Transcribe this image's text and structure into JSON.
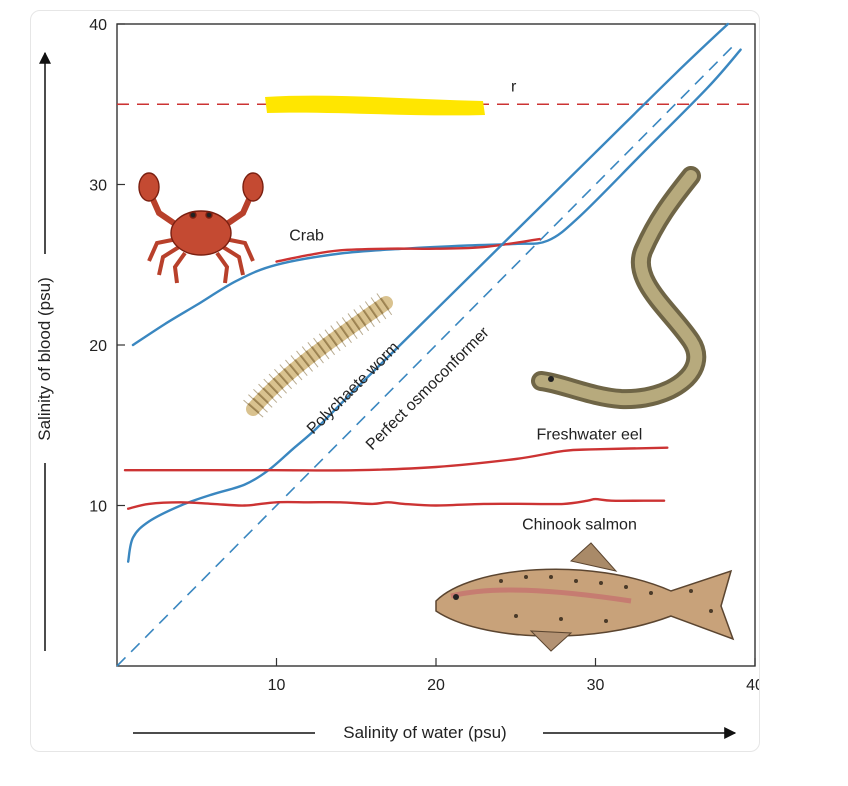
{
  "chart_data": {
    "type": "line",
    "title": "",
    "xlabel": "Salinity of water (psu)",
    "ylabel": "Salinity of blood (psu)",
    "xlim": [
      0,
      40
    ],
    "ylim": [
      0,
      40
    ],
    "xticks": [
      10,
      20,
      30,
      40
    ],
    "yticks": [
      10,
      20,
      30,
      40
    ],
    "grid": false,
    "colors": {
      "osmoconformer": "#3a87c0",
      "regulator": "#cc3333",
      "highlight": "#ffe600"
    },
    "reference_lines": [
      {
        "name": "Perfect osmoconformer",
        "label": "Perfect osmoconformer",
        "style": "dashed",
        "color": "#3a87c0",
        "x": [
          0,
          38.6
        ],
        "y": [
          0,
          38.6
        ]
      },
      {
        "name": "regulator-threshold",
        "label": "",
        "style": "dashed",
        "color": "#cc3333",
        "x": [
          0,
          40
        ],
        "y": [
          35,
          35
        ]
      }
    ],
    "series": [
      {
        "name": "Crab",
        "color": "#3a87c0",
        "x": [
          1,
          3,
          5,
          7.5,
          10,
          14,
          18,
          22,
          25,
          27,
          29,
          33,
          37,
          39.1
        ],
        "y": [
          20,
          21.3,
          22.5,
          24,
          25,
          25.7,
          26,
          26.2,
          26.3,
          26.5,
          28,
          32,
          36,
          38.4
        ]
      },
      {
        "name": "Crab",
        "color": "#cc3333",
        "x": [
          10,
          12,
          14,
          17,
          20,
          23,
          26.5
        ],
        "y": [
          25.2,
          25.6,
          25.9,
          26.0,
          26.0,
          26.1,
          26.6
        ]
      },
      {
        "name": "Polychaete worm",
        "color": "#3a87c0",
        "x": [
          0.7,
          1,
          2,
          4,
          6,
          8,
          9.5,
          11,
          12.5,
          15,
          20,
          25,
          30,
          35,
          38.3
        ],
        "y": [
          6.5,
          8,
          9,
          10,
          10.7,
          11.3,
          12.2,
          13.5,
          14.8,
          17.3,
          22.2,
          27.1,
          32,
          36.9,
          40
        ]
      },
      {
        "name": "Freshwater eel",
        "color": "#cc3333",
        "x": [
          0.5,
          5,
          10,
          15,
          20,
          25,
          28,
          30,
          34.5
        ],
        "y": [
          12.2,
          12.2,
          12.2,
          12.2,
          12.4,
          12.9,
          13.4,
          13.5,
          13.6
        ]
      },
      {
        "name": "Chinook salmon",
        "color": "#cc3333",
        "x": [
          0.7,
          2,
          4,
          6,
          8,
          10,
          12,
          14,
          16,
          17,
          18,
          20,
          23,
          26,
          28,
          29.5,
          30,
          31,
          33,
          34.3
        ],
        "y": [
          9.8,
          10.1,
          10.2,
          10.1,
          10.0,
          10.2,
          10.2,
          10.2,
          10.1,
          10.2,
          10.1,
          10.0,
          10.1,
          10.1,
          10.1,
          10.3,
          10.4,
          10.3,
          10.3,
          10.3
        ]
      }
    ],
    "annotations": [
      {
        "id": "crab",
        "text": "Crab",
        "x": 10.8,
        "y": 26.5
      },
      {
        "id": "worm",
        "text": "Polychaete worm",
        "x": 12.3,
        "y": 14.4,
        "rotate": -45
      },
      {
        "id": "conformer",
        "text": "Perfect osmoconformer",
        "x": 16,
        "y": 13.4,
        "rotate": -45
      },
      {
        "id": "eel",
        "text": "Freshwater eel",
        "x": 26.3,
        "y": 14.1
      },
      {
        "id": "salmon",
        "text": "Chinook salmon",
        "x": 25.4,
        "y": 8.5
      },
      {
        "id": "redacted",
        "text": "r",
        "x": 24.7,
        "y": 35.8
      }
    ]
  }
}
